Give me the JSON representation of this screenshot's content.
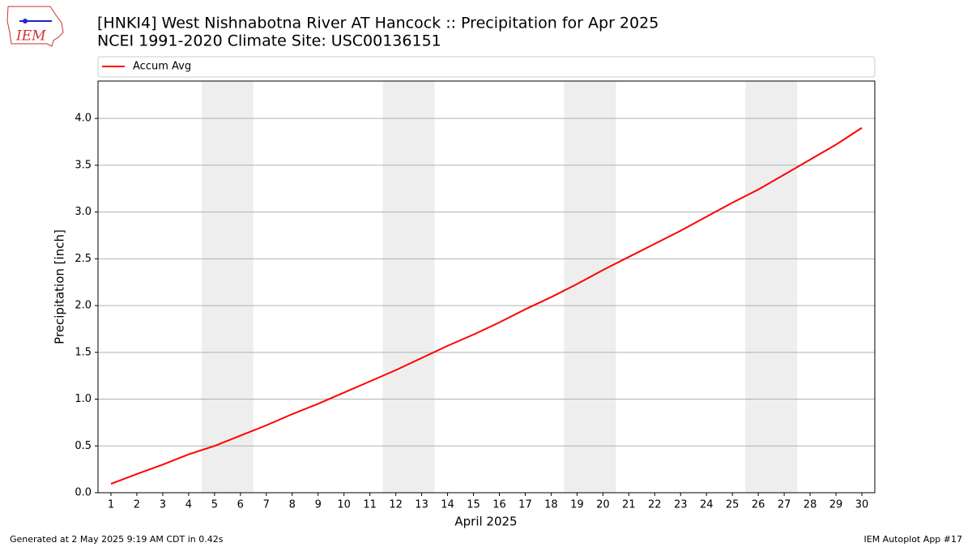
{
  "logo_text": "IEM",
  "chart_data": {
    "type": "line",
    "title": "[HNKI4] West Nishnabotna River  AT Hancock :: Precipitation for Apr 2025",
    "subtitle": "NCEI 1991-2020 Climate Site: USC00136151",
    "x_label": "April 2025",
    "y_label": "Precipitation [inch]",
    "x": [
      1,
      2,
      3,
      4,
      5,
      6,
      7,
      8,
      9,
      10,
      11,
      12,
      13,
      14,
      15,
      16,
      17,
      18,
      19,
      20,
      21,
      22,
      23,
      24,
      25,
      26,
      27,
      28,
      29,
      30
    ],
    "series": [
      {
        "name": "Accum Avg",
        "color": "#ff0000",
        "values": [
          0.095,
          0.2,
          0.3,
          0.41,
          0.5,
          0.61,
          0.72,
          0.84,
          0.95,
          1.07,
          1.19,
          1.31,
          1.44,
          1.57,
          1.69,
          1.82,
          1.96,
          2.09,
          2.23,
          2.38,
          2.52,
          2.66,
          2.8,
          2.95,
          3.1,
          3.24,
          3.4,
          3.56,
          3.72,
          3.9
        ]
      }
    ],
    "xlim": [
      0.5,
      30.5
    ],
    "xticks": [
      1,
      2,
      3,
      4,
      5,
      6,
      7,
      8,
      9,
      10,
      11,
      12,
      13,
      14,
      15,
      16,
      17,
      18,
      19,
      20,
      21,
      22,
      23,
      24,
      25,
      26,
      27,
      28,
      29,
      30
    ],
    "ylim": [
      0,
      4.4
    ],
    "yticks": [
      {
        "value": 0,
        "label": "0.0"
      },
      {
        "value": 0.5,
        "label": "0.5"
      },
      {
        "value": 1,
        "label": "1.0"
      },
      {
        "value": 1.5,
        "label": "1.5"
      },
      {
        "value": 2,
        "label": "2.0"
      },
      {
        "value": 2.5,
        "label": "2.5"
      },
      {
        "value": 3,
        "label": "3.0"
      },
      {
        "value": 3.5,
        "label": "3.5"
      },
      {
        "value": 4,
        "label": "4.0"
      }
    ],
    "grid": true,
    "legend": "top",
    "shaded_x_spans": [
      [
        4.5,
        6.5
      ],
      [
        11.5,
        13.5
      ],
      [
        18.5,
        20.5
      ],
      [
        25.5,
        27.5
      ]
    ],
    "shade_color": "#eeeeee",
    "footer_left": "Generated at 2 May 2025 9:19 AM CDT in 0.42s",
    "footer_right": "IEM Autoplot App #17"
  }
}
